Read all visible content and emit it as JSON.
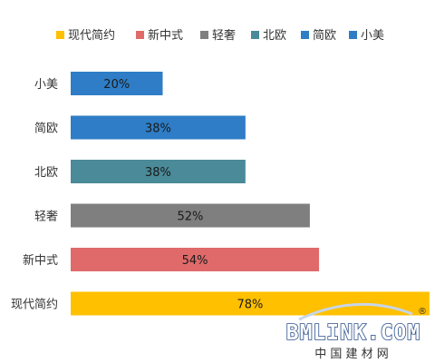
{
  "chart_data": {
    "type": "bar",
    "orientation": "horizontal",
    "title": "",
    "xlabel": "",
    "ylabel": "",
    "xlim": [
      0,
      80
    ],
    "grid": false,
    "legend_position": "top",
    "categories": [
      "小美",
      "简欧",
      "北欧",
      "轻奢",
      "新中式",
      "现代简约"
    ],
    "values": [
      20,
      38,
      38,
      52,
      54,
      78
    ],
    "value_labels": [
      "20%",
      "38%",
      "38%",
      "52%",
      "54%",
      "78%"
    ],
    "colors": [
      "#2e7dc6",
      "#2e7dc6",
      "#4a8a99",
      "#7f7f7f",
      "#e06a6a",
      "#ffc000"
    ],
    "legend": [
      {
        "name": "现代简约",
        "color": "#ffc000"
      },
      {
        "name": "新中式",
        "color": "#e06a6a"
      },
      {
        "name": "轻奢",
        "color": "#7f7f7f"
      },
      {
        "name": "北欧",
        "color": "#4a8a99"
      },
      {
        "name": "简欧",
        "color": "#2e7dc6"
      },
      {
        "name": "小美",
        "color": "#2e7dc6"
      }
    ]
  },
  "watermark": {
    "brand": "BMLINK.COM",
    "subtitle": "中 国 建 材 网",
    "mark": "®"
  }
}
